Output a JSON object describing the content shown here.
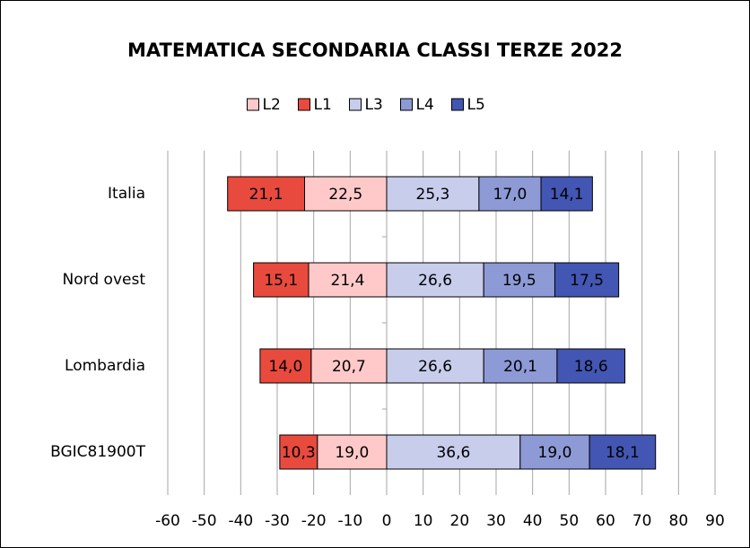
{
  "chart_data": {
    "type": "bar",
    "orientation": "horizontal",
    "stacked": true,
    "title": "MATEMATICA SECONDARIA CLASSI TERZE 2022",
    "categories": [
      "Italia",
      "Nord ovest",
      "Lombardia",
      "BGIC81900T"
    ],
    "series": [
      {
        "name": "L2",
        "color": "#ffc9c9",
        "values": [
          -22.5,
          -21.4,
          -20.7,
          -19.0
        ],
        "value_labels": [
          "22,5",
          "21,4",
          "20,7",
          "19,0"
        ]
      },
      {
        "name": "L1",
        "color": "#e84a3e",
        "values": [
          -21.1,
          -15.1,
          -14.0,
          -10.3
        ],
        "value_labels": [
          "21,1",
          "15,1",
          "14,0",
          "10,3"
        ]
      },
      {
        "name": "L3",
        "color": "#c7cdeb",
        "values": [
          25.3,
          26.6,
          26.6,
          36.6
        ],
        "value_labels": [
          "25,3",
          "26,6",
          "26,6",
          "36,6"
        ]
      },
      {
        "name": "L4",
        "color": "#8d9ad6",
        "values": [
          17.0,
          19.5,
          20.1,
          19.0
        ],
        "value_labels": [
          "17,0",
          "19,5",
          "20,1",
          "19,0"
        ]
      },
      {
        "name": "L5",
        "color": "#4356b3",
        "values": [
          14.1,
          17.5,
          18.6,
          18.1
        ],
        "value_labels": [
          "14,1",
          "17,5",
          "18,6",
          "18,1"
        ]
      }
    ],
    "xlim": [
      -60,
      90
    ],
    "xticks": [
      -60,
      -50,
      -40,
      -30,
      -20,
      -10,
      0,
      10,
      20,
      30,
      40,
      50,
      60,
      70,
      80,
      90
    ],
    "grid": true,
    "legend": "top"
  }
}
